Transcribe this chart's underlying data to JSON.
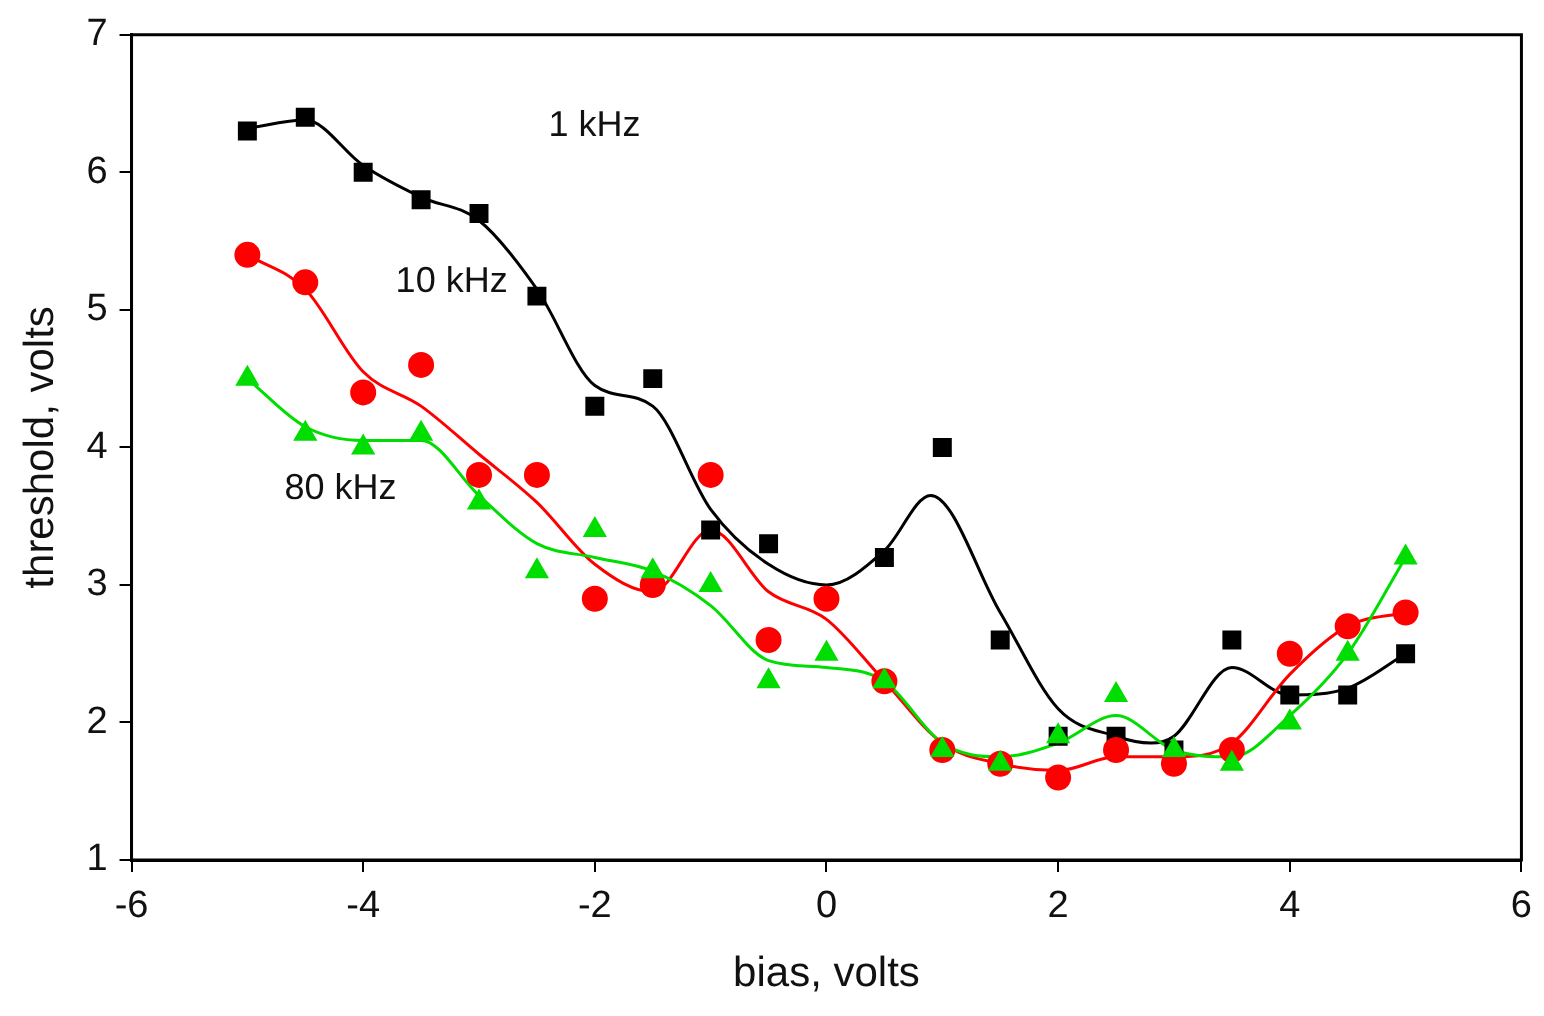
{
  "chart_data": {
    "type": "scatter",
    "xlabel": "bias, volts",
    "ylabel": "threshold, volts",
    "xlim": [
      -6,
      6
    ],
    "xticks": [
      -6,
      -4,
      -2,
      0,
      2,
      4,
      6
    ],
    "ylim": [
      1,
      7
    ],
    "yticks": [
      1,
      2,
      3,
      4,
      5,
      6,
      7
    ],
    "grid": false,
    "legend": false,
    "annotations": [
      "1 kHz",
      "10 kHz",
      "80 kHz"
    ],
    "series": [
      {
        "marker": "square",
        "color": "#000000",
        "x": [
          -5,
          -4.5,
          -4,
          -3.5,
          -3,
          -2.5,
          -2,
          -1.5,
          -1,
          -0.5,
          0,
          0.5,
          1,
          1.5,
          2,
          2.5,
          3,
          3.5,
          4,
          4.5,
          5
        ],
        "values": [
          6.3,
          6.4,
          6.0,
          5.8,
          5.7,
          5.1,
          4.3,
          4.5,
          3.4,
          3.3,
          null,
          3.2,
          4.0,
          2.6,
          1.9,
          1.9,
          1.8,
          2.6,
          2.2,
          2.2,
          2.5
        ]
      },
      {
        "marker": "circle",
        "color": "#ff0000",
        "x": [
          -5,
          -4.5,
          -4,
          -3.5,
          -3,
          -2.5,
          -2,
          -1.5,
          -1,
          -0.5,
          0,
          0.5,
          1,
          1.5,
          2,
          2.5,
          3,
          3.5,
          4,
          4.5,
          5
        ],
        "values": [
          5.4,
          5.2,
          4.4,
          4.6,
          3.8,
          3.8,
          2.9,
          3.0,
          3.8,
          2.6,
          2.9,
          2.3,
          1.8,
          1.7,
          1.6,
          1.8,
          1.7,
          1.8,
          2.5,
          2.7,
          2.8
        ]
      },
      {
        "marker": "triangle",
        "color": "#00dd00",
        "x": [
          -5,
          -4.5,
          -4,
          -3.5,
          -3,
          -2.5,
          -2,
          -1.5,
          -1,
          -0.5,
          0,
          0.5,
          1,
          1.5,
          2,
          2.5,
          3,
          3.5,
          4,
          4.5,
          5
        ],
        "values": [
          4.5,
          4.1,
          4.0,
          4.1,
          3.6,
          3.1,
          3.4,
          3.1,
          3.0,
          2.3,
          2.5,
          2.3,
          1.8,
          1.7,
          1.9,
          2.2,
          1.8,
          1.7,
          2.0,
          2.5,
          3.2
        ]
      },
      {
        "type": "line",
        "marker": "none",
        "color": "#000000",
        "x": [
          -5,
          -4.5,
          -4,
          -3.5,
          -3,
          -2.5,
          -2,
          -1.5,
          -1,
          -0.5,
          0,
          0.5,
          0.9,
          1.5,
          2,
          2.5,
          2.8,
          3,
          3.5,
          4,
          4.5,
          5
        ],
        "values": [
          6.32,
          6.38,
          6.05,
          5.82,
          5.65,
          5.15,
          4.45,
          4.3,
          3.55,
          3.15,
          3.0,
          3.25,
          3.65,
          2.8,
          2.1,
          1.9,
          1.85,
          1.9,
          2.4,
          2.2,
          2.25,
          2.5
        ]
      },
      {
        "type": "line",
        "marker": "none",
        "color": "#ff0000",
        "x": [
          -5,
          -4.5,
          -4,
          -3.5,
          -3,
          -2.5,
          -2,
          -1.5,
          -1,
          -0.5,
          0,
          0.5,
          1,
          1.5,
          2,
          2.5,
          3,
          3.5,
          4,
          4.5,
          5
        ],
        "values": [
          5.4,
          5.15,
          4.55,
          4.3,
          3.95,
          3.6,
          3.15,
          2.95,
          3.4,
          2.95,
          2.75,
          2.3,
          1.85,
          1.7,
          1.65,
          1.75,
          1.75,
          1.85,
          2.35,
          2.7,
          2.8
        ]
      },
      {
        "type": "line",
        "marker": "none",
        "color": "#00dd00",
        "x": [
          -5,
          -4.5,
          -4,
          -3.5,
          -3,
          -2.5,
          -2,
          -1.5,
          -1,
          -0.5,
          0,
          0.5,
          1,
          1.5,
          2,
          2.5,
          3,
          3.5,
          4,
          4.5,
          5
        ],
        "values": [
          4.5,
          4.15,
          4.05,
          4.05,
          3.65,
          3.3,
          3.2,
          3.1,
          2.85,
          2.45,
          2.4,
          2.3,
          1.85,
          1.75,
          1.85,
          2.05,
          1.8,
          1.75,
          2.05,
          2.5,
          3.2
        ]
      }
    ]
  }
}
